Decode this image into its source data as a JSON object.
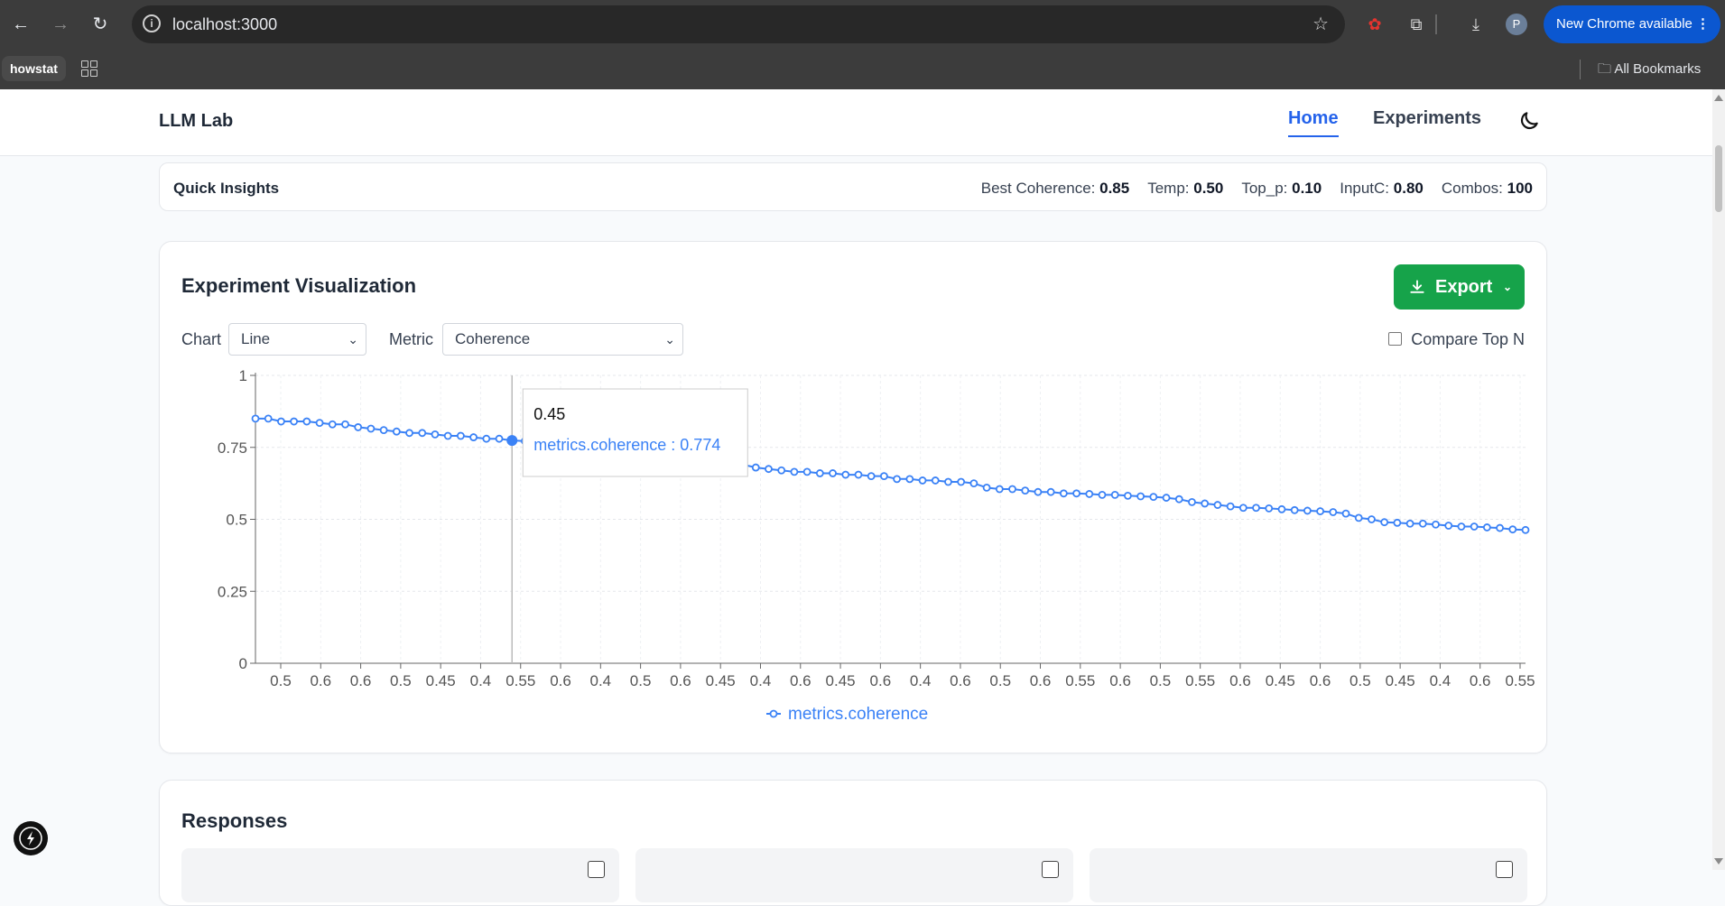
{
  "browser": {
    "url": "localhost:3000",
    "new_chrome_label": "New Chrome available",
    "profile_initial": "P",
    "bookmark_howstat": "howstat",
    "all_bookmarks": "All Bookmarks"
  },
  "app": {
    "brand": "LLM Lab",
    "nav_home": "Home",
    "nav_experiments": "Experiments"
  },
  "insights": {
    "title": "Quick Insights",
    "best_label": "Best Coherence:",
    "best_value": "0.85",
    "temp_label": "Temp:",
    "temp_value": "0.50",
    "top_p_label": "Top_p:",
    "top_p_value": "0.10",
    "inputc_label": "InputC:",
    "inputc_value": "0.80",
    "combos_label": "Combos:",
    "combos_value": "100"
  },
  "viz": {
    "title": "Experiment Visualization",
    "export_label": "Export",
    "chart_label": "Chart",
    "chart_value": "Line",
    "metric_label": "Metric",
    "metric_value": "Coherence",
    "compare_label": "Compare Top N"
  },
  "responses": {
    "title": "Responses"
  },
  "colors": {
    "accent": "#2563eb",
    "export": "#16a34a",
    "line": "#3b82f6"
  },
  "chart_data": {
    "type": "line",
    "series": [
      {
        "name": "metrics.coherence",
        "values": [
          0.85,
          0.85,
          0.84,
          0.84,
          0.84,
          0.835,
          0.83,
          0.83,
          0.82,
          0.815,
          0.81,
          0.805,
          0.8,
          0.8,
          0.795,
          0.79,
          0.79,
          0.785,
          0.78,
          0.78,
          0.774,
          0.772,
          0.77,
          0.765,
          0.76,
          0.755,
          0.75,
          0.745,
          0.74,
          0.735,
          0.73,
          0.725,
          0.72,
          0.715,
          0.71,
          0.705,
          0.7,
          0.695,
          0.69,
          0.68,
          0.675,
          0.67,
          0.665,
          0.665,
          0.66,
          0.66,
          0.655,
          0.655,
          0.65,
          0.65,
          0.64,
          0.64,
          0.635,
          0.635,
          0.63,
          0.63,
          0.625,
          0.61,
          0.605,
          0.605,
          0.6,
          0.595,
          0.595,
          0.59,
          0.59,
          0.588,
          0.585,
          0.585,
          0.582,
          0.58,
          0.578,
          0.575,
          0.57,
          0.56,
          0.555,
          0.55,
          0.545,
          0.54,
          0.54,
          0.538,
          0.535,
          0.532,
          0.53,
          0.528,
          0.525,
          0.52,
          0.505,
          0.5,
          0.49,
          0.488,
          0.485,
          0.485,
          0.482,
          0.478,
          0.475,
          0.475,
          0.472,
          0.47,
          0.465,
          0.463
        ]
      }
    ],
    "x_tick_labels": [
      "0.5",
      "0.6",
      "0.6",
      "0.5",
      "0.45",
      "0.4",
      "0.55",
      "0.6",
      "0.4",
      "0.5",
      "0.6",
      "0.45",
      "0.4",
      "0.6",
      "0.45",
      "0.6",
      "0.4",
      "0.6",
      "0.5",
      "0.6",
      "0.55",
      "0.6",
      "0.5",
      "0.55",
      "0.6",
      "0.45",
      "0.6",
      "0.5",
      "0.45",
      "0.4",
      "0.6",
      "0.55"
    ],
    "y_ticks": [
      "0",
      "0.25",
      "0.5",
      "0.75",
      "1"
    ],
    "ylim": [
      0,
      1
    ],
    "legend": "metrics.coherence",
    "tooltip": {
      "x_label": "0.45",
      "text": "metrics.coherence : 0.774",
      "index": 20
    }
  }
}
